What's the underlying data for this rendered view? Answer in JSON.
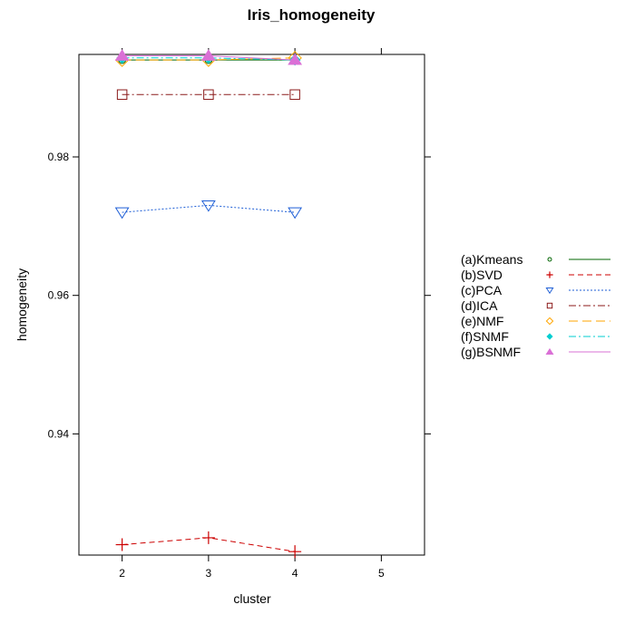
{
  "chart_data": {
    "type": "line",
    "title": "Iris_homogeneity",
    "xlabel": "cluster",
    "ylabel": "homogeneity",
    "xlim": [
      1.5,
      5.5
    ],
    "ylim": [
      0.9225,
      0.9948
    ],
    "x_ticks": [
      2,
      3,
      4,
      5
    ],
    "y_ticks": [
      0.94,
      0.96,
      0.98
    ],
    "y_tick_labels": [
      "0.94",
      "0.96",
      "0.98"
    ],
    "grid": false,
    "legend_position": "right",
    "x": [
      2,
      3,
      4
    ],
    "series": [
      {
        "name": "(a)Kmeans",
        "values": [
          0.994,
          0.994,
          0.994
        ],
        "color": "#006400",
        "dash": "",
        "marker": "circle"
      },
      {
        "name": "(b)SVD",
        "values": [
          0.924,
          0.925,
          0.923
        ],
        "color": "#cc0000",
        "dash": "6,4",
        "marker": "plus"
      },
      {
        "name": "(c)PCA",
        "values": [
          0.972,
          0.973,
          0.972
        ],
        "color": "#1f5fd6",
        "dash": "2,2",
        "marker": "triangle-down"
      },
      {
        "name": "(d)ICA",
        "values": [
          0.989,
          0.989,
          0.989
        ],
        "color": "#8b1a1a",
        "dash": "8,3,2,3",
        "marker": "square"
      },
      {
        "name": "(e)NMF",
        "values": [
          0.994,
          0.994,
          0.9943
        ],
        "color": "#ffa500",
        "dash": "10,5",
        "marker": "diamond"
      },
      {
        "name": "(f)SNMF",
        "values": [
          0.9943,
          0.9943,
          0.994
        ],
        "color": "#00ced1",
        "dash": "8,3,2,3",
        "marker": "diamond-filled"
      },
      {
        "name": "(g)BSNMF",
        "values": [
          0.9946,
          0.9946,
          0.994
        ],
        "color": "#da70d6",
        "dash": "",
        "marker": "triangle-up-filled"
      }
    ]
  }
}
